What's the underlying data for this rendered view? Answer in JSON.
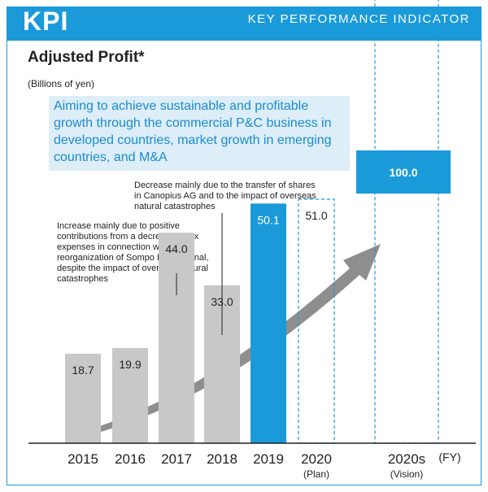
{
  "header": {
    "kpi_label": "KPI",
    "subtitle": "KEY PERFORMANCE INDICATOR"
  },
  "colors": {
    "accent": "#1a9ad9",
    "grey_bar": "#c8c8c8",
    "arrow": "#7a7a7a",
    "aim_bg": "#ddeef8"
  },
  "chart_data": {
    "type": "bar",
    "title": "Adjusted Profit*",
    "ylabel": "(Billions of yen)",
    "xlabel": "(FY)",
    "categories": [
      "2015",
      "2016",
      "2017",
      "2018",
      "2019",
      "2020",
      "2020s"
    ],
    "category_notes": [
      "",
      "",
      "",
      "",
      "",
      "(Plan)",
      "(Vision)"
    ],
    "values": [
      18.7,
      19.9,
      44.0,
      33.0,
      50.1,
      51.0,
      100.0
    ],
    "value_labels": [
      "18.7",
      "19.9",
      "44.0",
      "33.0",
      "50.1",
      "51.0",
      "100.0"
    ],
    "bar_styles": [
      "actual",
      "actual",
      "actual",
      "actual",
      "highlight",
      "target",
      "target"
    ],
    "ylim": [
      0,
      100
    ],
    "aim_text": "Aiming to achieve sustainable and profitable growth through the commercial P&C business in developed countries, market growth in emerging countries, and M&A",
    "annotations": [
      {
        "target": "2018",
        "text": "Decrease mainly due to the transfer of shares in Canopius AG and to the impact of overseas natural catastrophes"
      },
      {
        "target": "2017",
        "text": "Increase mainly due to positive contributions from a decrease in tax expenses in connection with the reorganization of Sompo International, despite the impact of overseas natural catastrophes"
      }
    ]
  }
}
